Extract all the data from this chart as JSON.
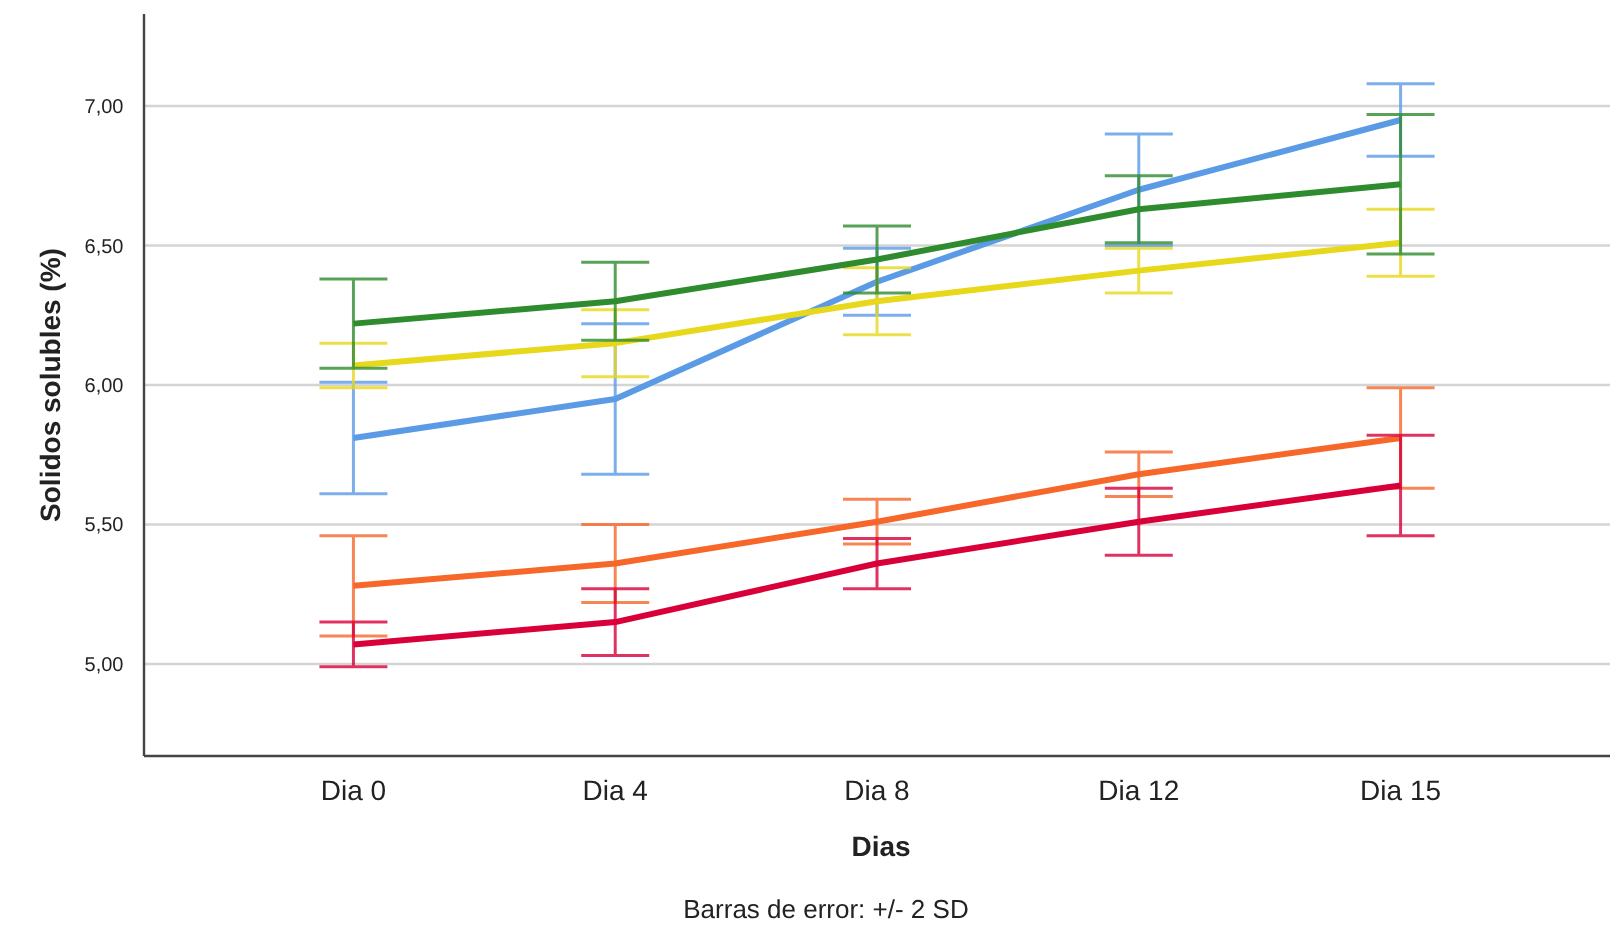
{
  "chart_data": {
    "type": "line",
    "xlabel": "Dias",
    "ylabel": "Solidos solubles (%)",
    "annotations": [
      "Barras de error: +/- 2 SD"
    ],
    "categories": [
      "Dia 0",
      "Dia 4",
      "Dia 8",
      "Dia 12",
      "Dia 15"
    ],
    "ylim": [
      4.67,
      7.33
    ],
    "yticks": [
      {
        "value": 5,
        "label": "5,00"
      },
      {
        "value": 5.5,
        "label": "5,50"
      },
      {
        "value": 6,
        "label": "6,00"
      },
      {
        "value": 6.5,
        "label": "6,50"
      },
      {
        "value": 7,
        "label": "7,00"
      }
    ],
    "grid": "y",
    "marker": "none",
    "line_style": "solid",
    "series": [
      {
        "color": "#5b9be6",
        "values": [
          5.81,
          5.95,
          6.37,
          6.7,
          6.95
        ],
        "errors": [
          0.2,
          0.27,
          0.12,
          0.2,
          0.13
        ]
      },
      {
        "color": "#e8d81c",
        "values": [
          6.07,
          6.15,
          6.3,
          6.41,
          6.51
        ],
        "errors": [
          0.08,
          0.12,
          0.12,
          0.08,
          0.12
        ]
      },
      {
        "color": "#2e8b2e",
        "values": [
          6.22,
          6.3,
          6.45,
          6.63,
          6.72
        ],
        "errors": [
          0.16,
          0.14,
          0.12,
          0.12,
          0.25
        ]
      },
      {
        "color": "#f7672a",
        "values": [
          5.28,
          5.36,
          5.51,
          5.68,
          5.81
        ],
        "errors": [
          0.18,
          0.14,
          0.08,
          0.08,
          0.18
        ]
      },
      {
        "color": "#d9003a",
        "values": [
          5.07,
          5.15,
          5.36,
          5.51,
          5.64
        ],
        "errors": [
          0.08,
          0.12,
          0.09,
          0.12,
          0.18
        ]
      }
    ]
  }
}
